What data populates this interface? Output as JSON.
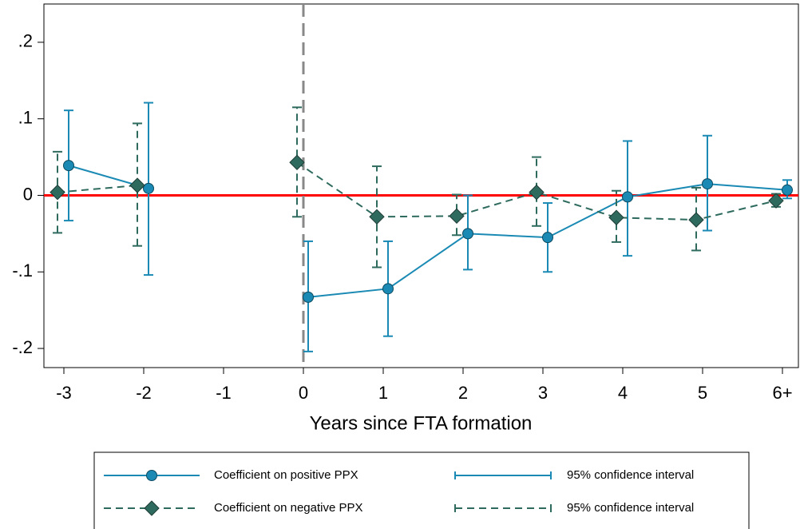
{
  "chart_data": {
    "type": "errorbar",
    "xlabel": "Years since FTA formation",
    "xlim": [
      -3.25,
      6.2
    ],
    "ylim": [
      -0.225,
      0.25
    ],
    "xticks": [
      -3,
      -2,
      -1,
      0,
      1,
      2,
      3,
      4,
      5,
      {
        "value": 6,
        "label": "6+"
      }
    ],
    "yticks": [
      {
        "value": 0.2,
        "label": ".2"
      },
      {
        "value": 0.1,
        "label": ".1"
      },
      0,
      {
        "value": -0.1,
        "label": "-.1"
      },
      {
        "value": -0.2,
        "label": "-.2"
      }
    ],
    "hline": {
      "value": 0,
      "color": "#ff0000"
    },
    "vline": {
      "value": 0,
      "color": "#888888"
    },
    "series": [
      {
        "name": "Coefficient on positive PPX",
        "ci_name": "95% confidence interval",
        "color": "#1a8ab4",
        "marker": "circle",
        "dashed": false,
        "x": [
          -2.94,
          -1.94,
          -0.94,
          0.06,
          1.06,
          2.06,
          3.06,
          4.06,
          5.06,
          6.06
        ],
        "values": [
          0.039,
          0.009,
          null,
          -0.133,
          -0.122,
          -0.05,
          -0.055,
          -0.002,
          0.015,
          0.007
        ],
        "lower": [
          -0.033,
          -0.104,
          null,
          -0.204,
          -0.184,
          -0.097,
          -0.1,
          -0.079,
          -0.046,
          -0.004
        ],
        "upper": [
          0.111,
          0.121,
          null,
          -0.06,
          -0.06,
          0.0,
          -0.01,
          0.071,
          0.078,
          0.02
        ]
      },
      {
        "name": "Coefficient on negative PPX",
        "ci_name": "95% confidence interval",
        "color": "#2e6b5e",
        "marker": "diamond",
        "dashed": true,
        "x": [
          -3.08,
          -2.08,
          -1.08,
          -0.08,
          0.92,
          1.92,
          2.92,
          3.92,
          4.92,
          5.92
        ],
        "values": [
          0.004,
          0.013,
          null,
          0.043,
          -0.028,
          -0.027,
          0.004,
          -0.029,
          -0.032,
          -0.007
        ],
        "lower": [
          -0.049,
          -0.066,
          null,
          -0.028,
          -0.094,
          -0.052,
          -0.04,
          -0.061,
          -0.072,
          -0.015
        ],
        "upper": [
          0.057,
          0.094,
          null,
          0.115,
          0.038,
          0.001,
          0.05,
          0.006,
          0.01,
          0.002
        ]
      }
    ]
  }
}
